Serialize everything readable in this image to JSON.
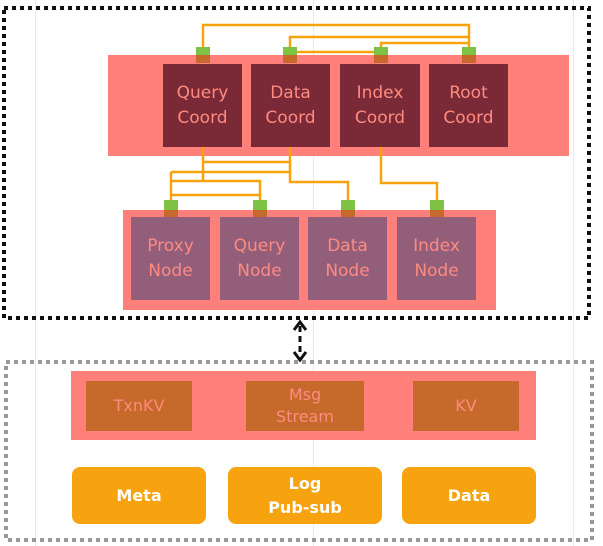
{
  "coordinators": [
    {
      "label": "Query\nCoord"
    },
    {
      "label": "Data\nCoord"
    },
    {
      "label": "Index\nCoord"
    },
    {
      "label": "Root\nCoord"
    }
  ],
  "worker_nodes": [
    {
      "label": "Proxy\nNode"
    },
    {
      "label": "Query\nNode"
    },
    {
      "label": "Data\nNode"
    },
    {
      "label": "Index\nNode"
    }
  ],
  "storage_services": [
    {
      "label": "TxnKV"
    },
    {
      "label": "Msg\nStream"
    },
    {
      "label": "KV"
    }
  ],
  "storage_layers": [
    {
      "label": "Meta"
    },
    {
      "label": "Log\nPub-sub"
    },
    {
      "label": "Data"
    }
  ],
  "colors": {
    "band": "#ff7f7a",
    "coord": "#7a2a36",
    "node": "#935e7a",
    "store": "#c56a2a",
    "layer": "#f7a20f",
    "connector": "#f7a20f",
    "port": "#7dc242"
  }
}
